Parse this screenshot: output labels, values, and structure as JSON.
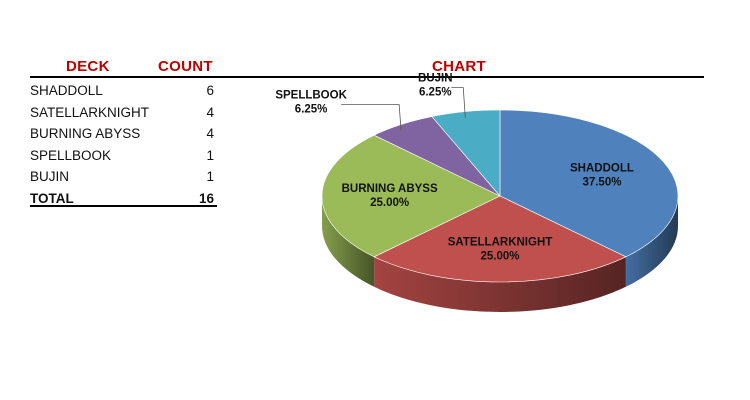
{
  "table": {
    "headers": {
      "deck": "DECK",
      "count": "COUNT"
    },
    "rows": [
      {
        "deck": "SHADDOLL",
        "count": "6"
      },
      {
        "deck": "SATELLARKNIGHT",
        "count": "4"
      },
      {
        "deck": "BURNING ABYSS",
        "count": "4"
      },
      {
        "deck": "SPELLBOOK",
        "count": "1"
      },
      {
        "deck": "BUJIN",
        "count": "1"
      }
    ],
    "total": {
      "label": "TOTAL",
      "count": "16"
    }
  },
  "chart_title": "CHART",
  "colors": {
    "header": "#c00000"
  },
  "chart_data": {
    "type": "pie",
    "title": "CHART",
    "three_d": true,
    "categories": [
      "SHADDOLL",
      "SATELLARKNIGHT",
      "BURNING ABYSS",
      "SPELLBOOK",
      "BUJIN"
    ],
    "values": [
      6,
      4,
      4,
      1,
      1
    ],
    "percent_labels": [
      "37.50%",
      "25.00%",
      "25.00%",
      "6.25%",
      "6.25%"
    ],
    "colors": [
      "#4f81bd",
      "#c0504d",
      "#9bbb59",
      "#8064a2",
      "#4bacc6"
    ]
  }
}
